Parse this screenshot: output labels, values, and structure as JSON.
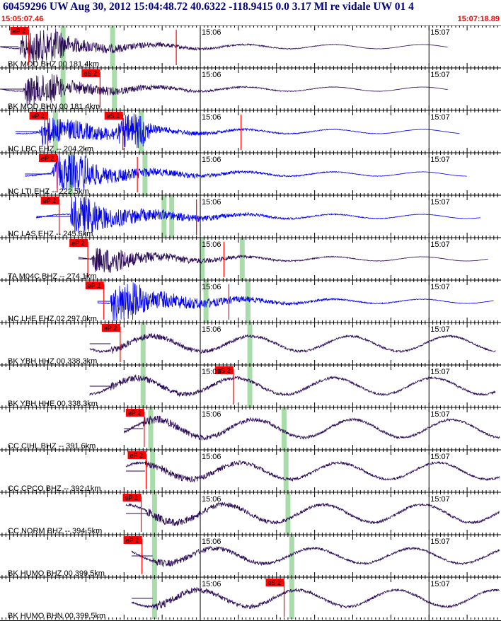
{
  "header": {
    "title": "60459296 UW Aug 30, 2012 15:04:48.72    40.6322 -118.9415  0.0 3.17 Ml re vidale UW 01    4",
    "start_time": "15:05:07.46",
    "end_time": "15:07:18.89"
  },
  "colors": {
    "background": "#ffffff",
    "title": "#000080",
    "time_labels": "#ff0000",
    "trace_dark": "#2a0a55",
    "trace_blue": "#0000ee",
    "pick_red": "#ff0000",
    "predicted_green": "#a8dca8",
    "grid": "#000000"
  },
  "chart_data": {
    "type": "line",
    "x_unit": "time (UTC)",
    "xlim": [
      "15:05:07.46",
      "15:07:18.89"
    ],
    "minute_ticks": [
      {
        "label": "15:06",
        "time": "15:06:00"
      },
      {
        "label": "15:07",
        "time": "15:07:00"
      }
    ],
    "grid": true,
    "channels": [
      {
        "label": "BK MOD BHZ 00 181.4km",
        "color": "dark",
        "start": "15:05:07.5",
        "end": "15:07:05.0",
        "kind": "local",
        "onset": "15:05:12.3",
        "picks": [
          {
            "label": "eP 2",
            "time": "15:05:15.0"
          },
          {
            "label": "",
            "time": "15:05:53.7"
          }
        ],
        "green": [
          "15:05:24.0",
          "15:05:37.0"
        ],
        "amp": 0.8
      },
      {
        "label": "BK MOD BHN 00 181.4km",
        "color": "dark",
        "start": "15:05:07.5",
        "end": "15:07:05.0",
        "kind": "local",
        "onset": "15:05:13.5",
        "picks": [
          {
            "label": "eS 2",
            "time": "15:05:33.7"
          }
        ],
        "green": [
          "15:05:24.0",
          "15:05:37.5"
        ],
        "amp": 0.7
      },
      {
        "label": "NC LBC EHZ -- 204.2km",
        "color": "blue",
        "start": "15:05:11.5",
        "end": "15:07:08.0",
        "kind": "local",
        "onset": "15:05:17.5",
        "picks": [
          {
            "label": "eP 2",
            "time": "15:05:20.0"
          },
          {
            "label": "eS 2",
            "time": "15:05:39.7"
          },
          {
            "label": "",
            "time": "15:06:10.7"
          }
        ],
        "green": [
          "15:05:22.0",
          "15:05:44.5"
        ],
        "amp": 0.85
      },
      {
        "label": "NC LTI EHZ -- 222.5km",
        "color": "blue",
        "start": "15:05:14.0",
        "end": "15:07:10.0",
        "kind": "local",
        "onset": "15:05:21.0",
        "picks": [
          {
            "label": "eP 2",
            "time": "15:05:22.5"
          },
          {
            "label": "",
            "time": "15:05:43.5"
          }
        ],
        "green": [
          "15:05:26.0",
          "15:05:45.5"
        ],
        "amp": 0.85
      },
      {
        "label": "NC LAS EHZ -- 245.6km",
        "color": "blue",
        "start": "15:05:17.0",
        "end": "15:07:13.5",
        "kind": "local",
        "onset": "15:05:26.0",
        "picks": [
          {
            "label": "eP 2",
            "time": "15:05:23.0"
          },
          {
            "label": "",
            "time": "15:05:59.0"
          }
        ],
        "green": [
          "15:05:50.5",
          "15:05:52.5"
        ],
        "amp": 0.9
      },
      {
        "label": "TA M04C BHZ -- 274.1km",
        "color": "dark",
        "start": "15:05:28.0",
        "end": "15:07:15.5",
        "kind": "local",
        "onset": "15:05:31.5",
        "picks": [
          {
            "label": "eP 2",
            "time": "15:05:30.5"
          },
          {
            "label": "",
            "time": "15:06:06.2"
          }
        ],
        "green": [
          "15:06:00.5",
          "15:06:11.0"
        ],
        "amp": 0.6
      },
      {
        "label": "NC LHE EHZ 02 297.0km",
        "color": "blue",
        "start": "15:05:33.0",
        "end": "15:07:17.0",
        "kind": "local",
        "onset": "15:05:36.5",
        "picks": [
          {
            "label": "eP 2",
            "time": "15:05:34.7"
          },
          {
            "label": "",
            "time": "15:06:07.5"
          }
        ],
        "green": [
          "15:06:01.5",
          "15:06:12.5"
        ],
        "amp": 0.9
      },
      {
        "label": "BK YBH HHZ 00 338.3km",
        "color": "dark",
        "start": "15:05:31.0",
        "end": "15:07:17.5",
        "kind": "wave",
        "onset": "15:05:36.5",
        "picks": [
          {
            "label": "eP 2",
            "time": "15:05:39.0"
          }
        ],
        "green": [
          "15:05:45.0",
          "15:06:13.0"
        ],
        "amp": 0.55
      },
      {
        "label": "BK YBH HHE 00 338.3km",
        "color": "dark",
        "start": "15:05:31.0",
        "end": "15:07:17.5",
        "kind": "wave",
        "onset": "15:05:36.5",
        "picks": [
          {
            "label": "eS 2",
            "time": "15:06:08.7"
          }
        ],
        "green": [
          "15:05:45.0",
          "15:06:13.0"
        ],
        "amp": 0.6
      },
      {
        "label": "CC CIHL BHZ -- 391.6km",
        "color": "dark",
        "start": "15:05:40.0",
        "end": "15:07:18.5",
        "kind": "wave",
        "onset": "15:05:45.0",
        "picks": [
          {
            "label": "eP 2",
            "time": "15:05:45.3"
          }
        ],
        "green": [
          "15:05:47.0",
          "15:06:22.0"
        ],
        "amp": 0.65
      },
      {
        "label": "CC CPCO BHZ -- 392.1km",
        "color": "dark",
        "start": "15:05:40.5",
        "end": "15:07:18.5",
        "kind": "wave",
        "onset": "15:05:45.5",
        "picks": [
          {
            "label": "eP 2",
            "time": "15:05:45.8"
          }
        ],
        "green": [
          "15:05:47.5",
          "15:06:22.5"
        ],
        "amp": 0.6
      },
      {
        "label": "CC NORM BHZ -- 394.5km",
        "color": "dark",
        "start": "15:05:40.5",
        "end": "15:07:18.5",
        "kind": "wave",
        "onset": "15:05:46.0",
        "picks": [
          {
            "label": "eP 2",
            "time": "15:05:44.5"
          }
        ],
        "green": [
          "15:05:48.0",
          "15:06:23.0"
        ],
        "amp": 0.65
      },
      {
        "label": "BK HUMO BHZ 00 399.5km",
        "color": "dark",
        "start": "15:05:42.0",
        "end": "15:07:18.5",
        "kind": "wave",
        "onset": "15:05:47.5",
        "picks": [
          {
            "label": "eP 2",
            "time": "15:05:44.7"
          }
        ],
        "green": [
          "15:05:48.0",
          "15:06:24.0"
        ],
        "amp": 0.55
      },
      {
        "label": "BK HUMO BHN 00 399.5km",
        "color": "dark",
        "start": "15:05:42.0",
        "end": "15:07:18.5",
        "kind": "wave",
        "onset": "15:05:47.5",
        "picks": [
          {
            "label": "eS 2",
            "time": "15:06:22.0"
          }
        ],
        "green": [
          "15:05:48.0",
          "15:06:24.0"
        ],
        "amp": 0.6
      }
    ]
  }
}
